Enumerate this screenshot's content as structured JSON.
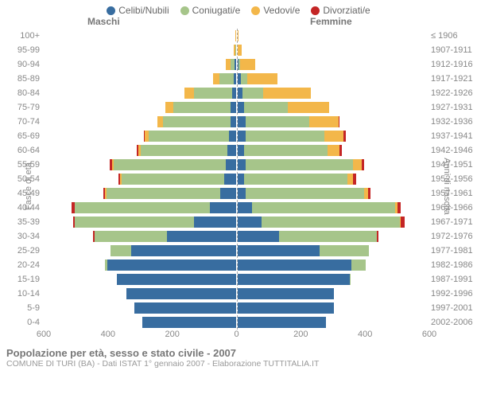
{
  "legend": {
    "items": [
      {
        "label": "Celibi/Nubili",
        "color": "#386da0"
      },
      {
        "label": "Coniugati/e",
        "color": "#a6c58a"
      },
      {
        "label": "Vedovi/e",
        "color": "#f3b74a"
      },
      {
        "label": "Divorziati/e",
        "color": "#c42525"
      }
    ]
  },
  "headers": {
    "male": "Maschi",
    "female": "Femmine"
  },
  "axis_titles": {
    "left": "Fasce di età",
    "right": "Anni di nascita"
  },
  "chart": {
    "type": "population-pyramid",
    "max_value": 600,
    "x_ticks": [
      600,
      400,
      200,
      0,
      200,
      400,
      600
    ],
    "category_colors": {
      "single": "#386da0",
      "married": "#a6c58a",
      "widowed": "#f3b74a",
      "divorced": "#c42525"
    },
    "bar_gap": 4,
    "bands": [
      {
        "age": "100+",
        "years": "≤ 1906",
        "male": {
          "single": 0,
          "married": 0,
          "widowed": 2,
          "divorced": 0
        },
        "female": {
          "single": 0,
          "married": 0,
          "widowed": 3,
          "divorced": 0
        }
      },
      {
        "age": "95-99",
        "years": "1907-1911",
        "male": {
          "single": 0,
          "married": 2,
          "widowed": 5,
          "divorced": 0
        },
        "female": {
          "single": 0,
          "married": 0,
          "widowed": 13,
          "divorced": 0
        }
      },
      {
        "age": "90-94",
        "years": "1912-1916",
        "male": {
          "single": 3,
          "married": 14,
          "widowed": 14,
          "divorced": 0
        },
        "female": {
          "single": 4,
          "married": 4,
          "widowed": 48,
          "divorced": 0
        }
      },
      {
        "age": "85-89",
        "years": "1917-1921",
        "male": {
          "single": 5,
          "married": 45,
          "widowed": 20,
          "divorced": 0
        },
        "female": {
          "single": 10,
          "married": 20,
          "widowed": 95,
          "divorced": 0
        }
      },
      {
        "age": "80-84",
        "years": "1922-1926",
        "male": {
          "single": 10,
          "married": 120,
          "widowed": 30,
          "divorced": 0
        },
        "female": {
          "single": 15,
          "married": 65,
          "widowed": 150,
          "divorced": 0
        }
      },
      {
        "age": "75-79",
        "years": "1927-1931",
        "male": {
          "single": 15,
          "married": 180,
          "widowed": 25,
          "divorced": 0
        },
        "female": {
          "single": 22,
          "married": 135,
          "widowed": 130,
          "divorced": 0
        }
      },
      {
        "age": "70-74",
        "years": "1932-1936",
        "male": {
          "single": 17,
          "married": 210,
          "widowed": 18,
          "divorced": 0
        },
        "female": {
          "single": 25,
          "married": 200,
          "widowed": 90,
          "divorced": 3
        }
      },
      {
        "age": "65-69",
        "years": "1937-1941",
        "male": {
          "single": 22,
          "married": 250,
          "widowed": 12,
          "divorced": 3
        },
        "female": {
          "single": 25,
          "married": 245,
          "widowed": 60,
          "divorced": 7
        }
      },
      {
        "age": "60-64",
        "years": "1942-1946",
        "male": {
          "single": 25,
          "married": 270,
          "widowed": 8,
          "divorced": 4
        },
        "female": {
          "single": 22,
          "married": 260,
          "widowed": 35,
          "divorced": 8
        }
      },
      {
        "age": "55-59",
        "years": "1947-1951",
        "male": {
          "single": 30,
          "married": 350,
          "widowed": 6,
          "divorced": 7
        },
        "female": {
          "single": 25,
          "married": 335,
          "widowed": 28,
          "divorced": 7
        }
      },
      {
        "age": "50-54",
        "years": "1952-1956",
        "male": {
          "single": 35,
          "married": 320,
          "widowed": 4,
          "divorced": 5
        },
        "female": {
          "single": 22,
          "married": 320,
          "widowed": 18,
          "divorced": 10
        }
      },
      {
        "age": "45-49",
        "years": "1957-1961",
        "male": {
          "single": 48,
          "married": 355,
          "widowed": 3,
          "divorced": 6
        },
        "female": {
          "single": 25,
          "married": 370,
          "widowed": 12,
          "divorced": 8
        }
      },
      {
        "age": "40-44",
        "years": "1962-1966",
        "male": {
          "single": 80,
          "married": 420,
          "widowed": 2,
          "divorced": 10
        },
        "female": {
          "single": 45,
          "married": 445,
          "widowed": 8,
          "divorced": 10
        }
      },
      {
        "age": "35-39",
        "years": "1967-1971",
        "male": {
          "single": 130,
          "married": 370,
          "widowed": 0,
          "divorced": 7
        },
        "female": {
          "single": 75,
          "married": 430,
          "widowed": 3,
          "divorced": 12
        }
      },
      {
        "age": "30-34",
        "years": "1972-1976",
        "male": {
          "single": 215,
          "married": 225,
          "widowed": 0,
          "divorced": 3
        },
        "female": {
          "single": 130,
          "married": 305,
          "widowed": 0,
          "divorced": 5
        }
      },
      {
        "age": "25-29",
        "years": "1977-1981",
        "male": {
          "single": 325,
          "married": 65,
          "widowed": 0,
          "divorced": 0
        },
        "female": {
          "single": 255,
          "married": 155,
          "widowed": 0,
          "divorced": 0
        }
      },
      {
        "age": "20-24",
        "years": "1982-1986",
        "male": {
          "single": 400,
          "married": 8,
          "widowed": 0,
          "divorced": 0
        },
        "female": {
          "single": 355,
          "married": 45,
          "widowed": 0,
          "divorced": 0
        }
      },
      {
        "age": "15-19",
        "years": "1987-1991",
        "male": {
          "single": 370,
          "married": 0,
          "widowed": 0,
          "divorced": 0
        },
        "female": {
          "single": 350,
          "married": 3,
          "widowed": 0,
          "divorced": 0
        }
      },
      {
        "age": "10-14",
        "years": "1992-1996",
        "male": {
          "single": 340,
          "married": 0,
          "widowed": 0,
          "divorced": 0
        },
        "female": {
          "single": 300,
          "married": 0,
          "widowed": 0,
          "divorced": 0
        }
      },
      {
        "age": "5-9",
        "years": "1997-2001",
        "male": {
          "single": 315,
          "married": 0,
          "widowed": 0,
          "divorced": 0
        },
        "female": {
          "single": 300,
          "married": 0,
          "widowed": 0,
          "divorced": 0
        }
      },
      {
        "age": "0-4",
        "years": "2002-2006",
        "male": {
          "single": 290,
          "married": 0,
          "widowed": 0,
          "divorced": 0
        },
        "female": {
          "single": 275,
          "married": 0,
          "widowed": 0,
          "divorced": 0
        }
      }
    ]
  },
  "footer": {
    "title": "Popolazione per età, sesso e stato civile - 2007",
    "subtitle": "COMUNE DI TURI (BA) - Dati ISTAT 1° gennaio 2007 - Elaborazione TUTTITALIA.IT"
  }
}
